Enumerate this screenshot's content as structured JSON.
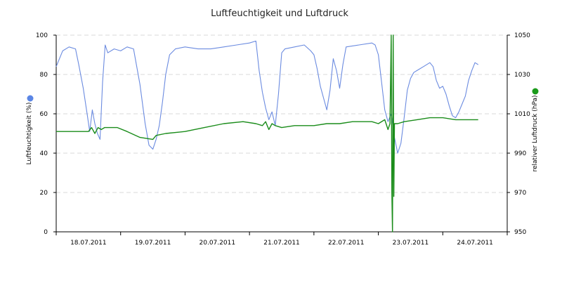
{
  "chart_data": {
    "type": "line",
    "title": "Luftfeuchtigkeit und Luftdruck",
    "ylabel_left": "Luftfeuchtigkeit (%)",
    "ylabel_right": "relativer Luftdruck (hPa)",
    "ylim_left": [
      0,
      100
    ],
    "ylim_right": [
      950,
      1050
    ],
    "yticks_left": [
      "0",
      "20",
      "40",
      "60",
      "80",
      "100"
    ],
    "yticks_right": [
      "950",
      "970",
      "990",
      "1010",
      "1030",
      "1050"
    ],
    "xlim": [
      0,
      7
    ],
    "x_tick_labels": [
      "18.07.2011",
      "19.07.2011",
      "20.07.2011",
      "21.07.2011",
      "22.07.2011",
      "23.07.2011",
      "24.07.2011"
    ],
    "grid": true,
    "legend": "markers beside axes",
    "series": [
      {
        "axis": "left",
        "color": "#6b8be0",
        "marker_color": "#5b86e5",
        "points": [
          [
            0.0,
            84
          ],
          [
            0.1,
            92
          ],
          [
            0.2,
            94
          ],
          [
            0.3,
            93
          ],
          [
            0.35,
            85
          ],
          [
            0.42,
            73
          ],
          [
            0.48,
            60
          ],
          [
            0.52,
            51
          ],
          [
            0.56,
            62
          ],
          [
            0.6,
            55
          ],
          [
            0.64,
            50
          ],
          [
            0.68,
            47
          ],
          [
            0.72,
            76
          ],
          [
            0.76,
            95
          ],
          [
            0.8,
            91
          ],
          [
            0.9,
            93
          ],
          [
            1.0,
            92
          ],
          [
            1.1,
            94
          ],
          [
            1.2,
            93
          ],
          [
            1.3,
            75
          ],
          [
            1.38,
            55
          ],
          [
            1.44,
            44
          ],
          [
            1.5,
            42
          ],
          [
            1.55,
            47
          ],
          [
            1.6,
            54
          ],
          [
            1.65,
            66
          ],
          [
            1.7,
            80
          ],
          [
            1.76,
            90
          ],
          [
            1.85,
            93
          ],
          [
            2.0,
            94
          ],
          [
            2.2,
            93
          ],
          [
            2.4,
            93
          ],
          [
            2.6,
            94
          ],
          [
            2.8,
            95
          ],
          [
            3.0,
            96
          ],
          [
            3.1,
            97
          ],
          [
            3.15,
            82
          ],
          [
            3.2,
            71
          ],
          [
            3.25,
            63
          ],
          [
            3.3,
            57
          ],
          [
            3.35,
            61
          ],
          [
            3.4,
            54
          ],
          [
            3.45,
            70
          ],
          [
            3.5,
            91
          ],
          [
            3.55,
            93
          ],
          [
            3.7,
            94
          ],
          [
            3.85,
            95
          ],
          [
            3.95,
            92
          ],
          [
            4.0,
            90
          ],
          [
            4.05,
            83
          ],
          [
            4.1,
            74
          ],
          [
            4.15,
            68
          ],
          [
            4.2,
            62
          ],
          [
            4.25,
            72
          ],
          [
            4.3,
            88
          ],
          [
            4.35,
            82
          ],
          [
            4.4,
            73
          ],
          [
            4.45,
            85
          ],
          [
            4.5,
            94
          ],
          [
            4.7,
            95
          ],
          [
            4.9,
            96
          ],
          [
            4.95,
            95
          ],
          [
            5.0,
            90
          ],
          [
            5.05,
            76
          ],
          [
            5.1,
            62
          ],
          [
            5.15,
            56
          ],
          [
            5.2,
            60
          ],
          [
            5.25,
            48
          ],
          [
            5.3,
            40
          ],
          [
            5.35,
            45
          ],
          [
            5.4,
            58
          ],
          [
            5.45,
            72
          ],
          [
            5.5,
            78
          ],
          [
            5.55,
            81
          ],
          [
            5.6,
            82
          ],
          [
            5.7,
            84
          ],
          [
            5.8,
            86
          ],
          [
            5.85,
            84
          ],
          [
            5.9,
            77
          ],
          [
            5.95,
            73
          ],
          [
            6.0,
            74
          ],
          [
            6.05,
            70
          ],
          [
            6.1,
            64
          ],
          [
            6.15,
            59
          ],
          [
            6.2,
            58
          ],
          [
            6.25,
            61
          ],
          [
            6.3,
            65
          ],
          [
            6.35,
            69
          ],
          [
            6.4,
            77
          ],
          [
            6.45,
            82
          ],
          [
            6.5,
            86
          ],
          [
            6.55,
            85
          ]
        ]
      },
      {
        "axis": "right",
        "color": "#1a8c1a",
        "marker_color": "#1a9a1a",
        "points": [
          [
            0.0,
            1001
          ],
          [
            0.5,
            1001
          ],
          [
            0.55,
            1003
          ],
          [
            0.6,
            1000
          ],
          [
            0.65,
            1003
          ],
          [
            0.7,
            1002
          ],
          [
            0.75,
            1003
          ],
          [
            0.8,
            1003
          ],
          [
            0.95,
            1003
          ],
          [
            1.1,
            1001
          ],
          [
            1.3,
            998
          ],
          [
            1.5,
            997
          ],
          [
            1.55,
            999
          ],
          [
            1.7,
            1000
          ],
          [
            2.0,
            1001
          ],
          [
            2.3,
            1003
          ],
          [
            2.6,
            1005
          ],
          [
            2.9,
            1006
          ],
          [
            3.1,
            1005
          ],
          [
            3.2,
            1004
          ],
          [
            3.25,
            1006
          ],
          [
            3.3,
            1002
          ],
          [
            3.35,
            1005
          ],
          [
            3.4,
            1004
          ],
          [
            3.5,
            1003
          ],
          [
            3.7,
            1004
          ],
          [
            4.0,
            1004
          ],
          [
            4.2,
            1005
          ],
          [
            4.4,
            1005
          ],
          [
            4.6,
            1006
          ],
          [
            4.9,
            1006
          ],
          [
            5.0,
            1005
          ],
          [
            5.1,
            1007
          ],
          [
            5.15,
            1002
          ],
          [
            5.18,
            1005
          ],
          [
            5.2,
            1050
          ],
          [
            5.21,
            970
          ],
          [
            5.22,
            950
          ],
          [
            5.23,
            1050
          ],
          [
            5.24,
            968
          ],
          [
            5.25,
            1005
          ],
          [
            5.3,
            1005
          ],
          [
            5.4,
            1006
          ],
          [
            5.6,
            1007
          ],
          [
            5.8,
            1008
          ],
          [
            6.0,
            1008
          ],
          [
            6.2,
            1007
          ],
          [
            6.4,
            1007
          ],
          [
            6.55,
            1007
          ]
        ]
      }
    ]
  }
}
